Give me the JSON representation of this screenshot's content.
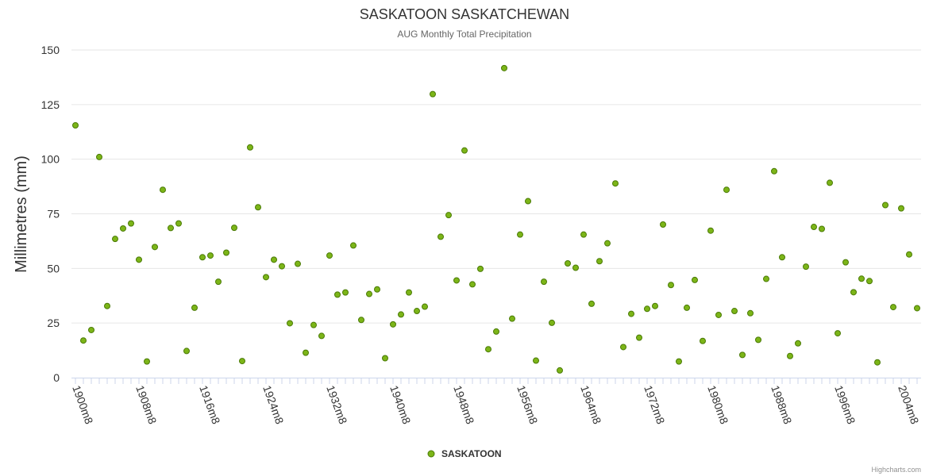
{
  "colors": {
    "series": "#7cb518",
    "series_stroke": "#4a7a06",
    "grid": "#e6e6e6",
    "axis": "#ccd6eb"
  },
  "chart_data": {
    "type": "scatter",
    "title": "SASKATOON SASKATCHEWAN",
    "subtitle": "AUG Monthly Total Precipitation",
    "ylabel": "Millimetres (mm)",
    "xlabel": "",
    "ylim": [
      0,
      150
    ],
    "yticks": [
      0,
      25,
      50,
      75,
      100,
      125,
      150
    ],
    "x_start_year": 1900,
    "x_end_year": 2006,
    "xtick_years": [
      1900,
      1908,
      1916,
      1924,
      1932,
      1940,
      1948,
      1956,
      1964,
      1972,
      1980,
      1988,
      1996,
      2004
    ],
    "xtick_labels": [
      "1900m8",
      "1908m8",
      "1916m8",
      "1924m8",
      "1932m8",
      "1940m8",
      "1948m8",
      "1956m8",
      "1964m8",
      "1972m8",
      "1980m8",
      "1988m8",
      "1996m8",
      "2004m8"
    ],
    "legend": "SASKATOON",
    "credit": "Highcharts.com",
    "series": [
      {
        "name": "SASKATOON",
        "values": [
          115.5,
          17,
          21.8,
          101,
          32.8,
          63.5,
          68.3,
          70.6,
          54,
          7.4,
          59.8,
          86,
          68.5,
          70.6,
          12.2,
          32,
          55.1,
          55.9,
          43.9,
          57.2,
          68.6,
          7.6,
          105.4,
          78,
          46,
          54,
          51,
          24.9,
          52.1,
          11.4,
          24.1,
          19.1,
          55.9,
          38,
          39,
          60.5,
          26.4,
          38.3,
          40.4,
          8.9,
          24.4,
          28.9,
          39,
          30.5,
          32.5,
          129.8,
          64.5,
          74.4,
          44.5,
          104,
          42.7,
          49.8,
          13,
          21.1,
          141.7,
          27,
          65.5,
          80.8,
          7.8,
          43.9,
          25.1,
          3.3,
          52.3,
          50.3,
          65.5,
          33.8,
          53.3,
          61.5,
          88.9,
          14,
          29.2,
          18.3,
          31.5,
          32.8,
          70.1,
          42.4,
          7.4,
          32,
          44.7,
          16.8,
          67.3,
          28.7,
          86,
          30.5,
          10.4,
          29.5,
          17.3,
          45.2,
          94.5,
          55.1,
          9.9,
          15.7,
          50.8,
          69,
          68.1,
          89.2,
          20.3,
          52.8,
          39.1,
          45.3,
          44.2,
          7,
          79,
          32.3,
          77.5,
          56.4,
          31.8
        ]
      }
    ]
  }
}
